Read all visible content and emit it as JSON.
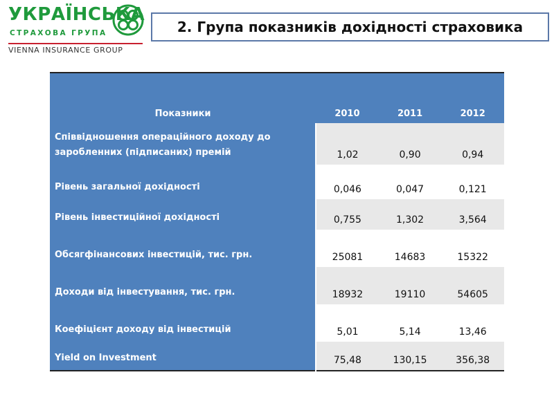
{
  "logo": {
    "name": "УКРАЇНСЬКА",
    "subtitle": "СТРАХОВА ГРУПА",
    "group": "VIENNA INSURANCE GROUP",
    "colors": {
      "green": "#1f9a3c",
      "red": "#c8202f"
    }
  },
  "title": "2. Група показників дохідності страховика",
  "table": {
    "header": {
      "label": "Показники",
      "years": [
        "2010",
        "2011",
        "2012"
      ]
    },
    "rows": [
      {
        "label": "Співвідношення  операційного  доходу до заробленних (підписаних) премій",
        "values": [
          "1,02",
          "0,90",
          "0,94"
        ]
      },
      {
        "label": "Рівень загальної дохідності",
        "values": [
          "0,046",
          "0,047",
          "0,121"
        ]
      },
      {
        "label": "Рівень інвестиційної дохідності",
        "values": [
          "0,755",
          "1,302",
          "3,564"
        ]
      },
      {
        "label": "Обсягфінансових  інвестицій, тис. грн.",
        "values": [
          "25081",
          "14683",
          "15322"
        ]
      },
      {
        "label": "Доходи від інвестування,  тис. грн.",
        "values": [
          "18932",
          "19110",
          "54605"
        ]
      },
      {
        "label": "Коефіцієнт доходу від інвестицій",
        "values": [
          "5,01",
          "5,14",
          "13,46"
        ]
      },
      {
        "label": "Yield on Investment",
        "values": [
          "75,48",
          "130,15",
          "356,38"
        ]
      }
    ],
    "colors": {
      "header": "#4f81bd",
      "band": "#e8e8e8"
    }
  }
}
